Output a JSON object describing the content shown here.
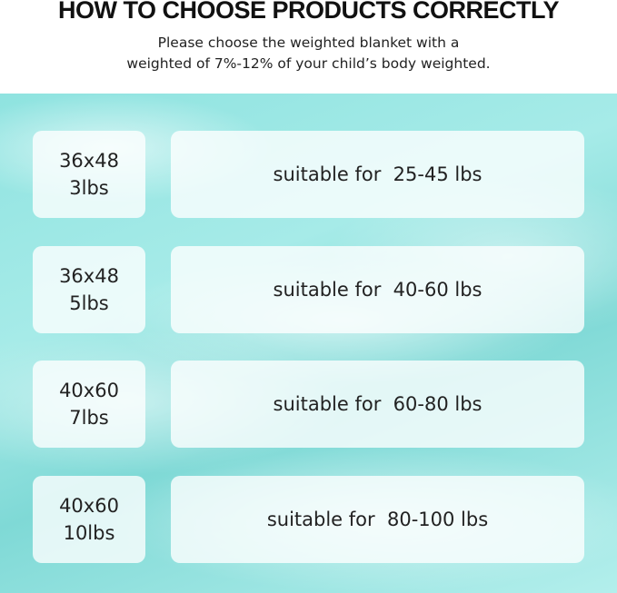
{
  "header": {
    "title": "HOW TO CHOOSE PRODUCTS CORRECTLY",
    "subtitle_line1": "Please choose the weighted blanket with a",
    "subtitle_line2": "weighted of 7%-12% of your child’s body weighted."
  },
  "background_color": "#8fe3e0",
  "rows": [
    {
      "size": "36x48",
      "weight": "3lbs",
      "suitable": "suitable for  25-45 lbs"
    },
    {
      "size": "36x48",
      "weight": "5lbs",
      "suitable": "suitable for  40-60 lbs"
    },
    {
      "size": "40x60",
      "weight": "7lbs",
      "suitable": "suitable for  60-80 lbs"
    },
    {
      "size": "40x60",
      "weight": "10lbs",
      "suitable": "suitable for  80-100 lbs"
    }
  ]
}
